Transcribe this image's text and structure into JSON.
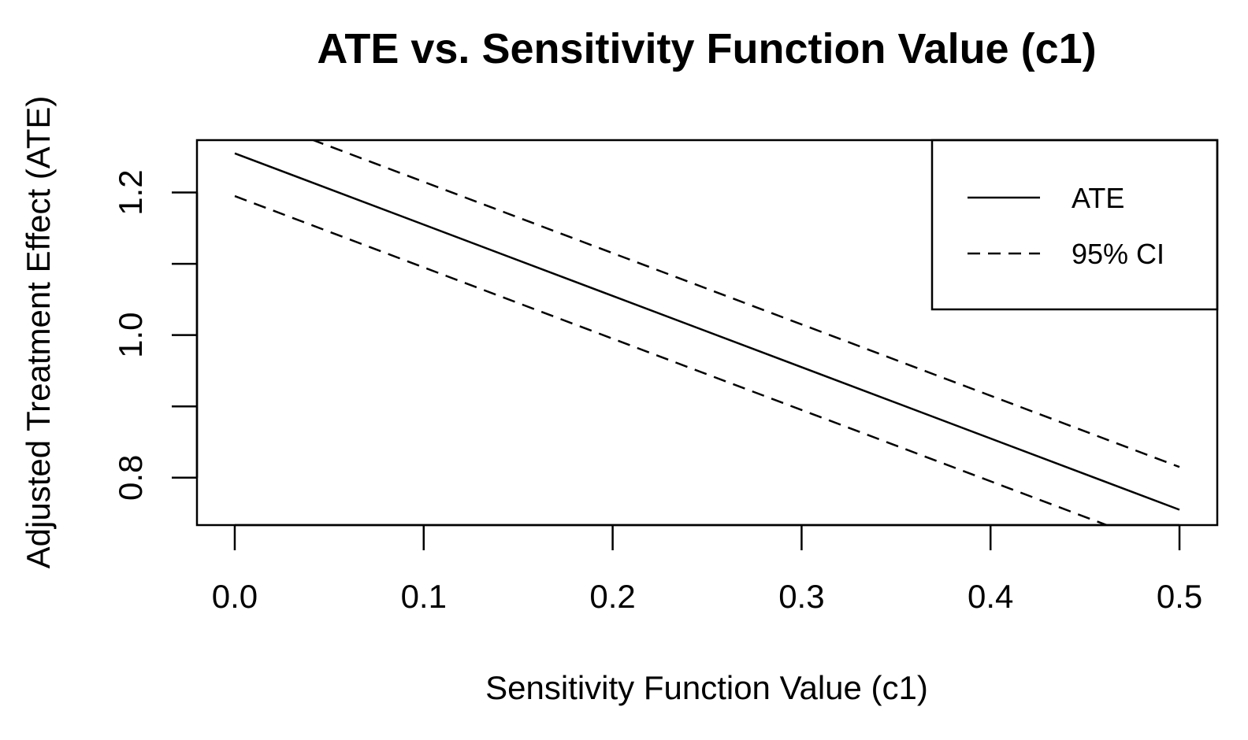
{
  "chart_data": {
    "type": "line",
    "title": "ATE vs. Sensitivity Function Value (c1)",
    "xlabel": "Sensitivity Function Value (c1)",
    "ylabel": "Adjusted Treatment Effect (ATE)",
    "xlim": [
      -0.02,
      0.52
    ],
    "ylim": [
      0.7335,
      1.2735
    ],
    "x_ticks": [
      0.0,
      0.1,
      0.2,
      0.3,
      0.4,
      0.5
    ],
    "x_tick_labels": [
      "0.0",
      "0.1",
      "0.2",
      "0.3",
      "0.4",
      "0.5"
    ],
    "y_ticks": [
      0.8,
      0.9,
      1.0,
      1.1,
      1.2
    ],
    "y_tick_labels": [
      "0.8",
      "",
      "1.0",
      "",
      "1.2"
    ],
    "grid": false,
    "legend_position": "top-right",
    "series": [
      {
        "name": "ATE",
        "line_style": "solid",
        "color": "#000000",
        "x": [
          0.0,
          0.5
        ],
        "y": [
          1.255,
          0.755
        ]
      },
      {
        "name": "95% CI",
        "line_style": "dashed",
        "color": "#000000",
        "x": [
          0.0,
          0.5
        ],
        "y": [
          1.315,
          0.815
        ]
      },
      {
        "line_style": "dashed",
        "color": "#000000",
        "x": [
          0.0,
          0.5
        ],
        "y": [
          1.195,
          0.695
        ]
      }
    ],
    "legend": [
      {
        "label": "ATE",
        "line_style": "solid"
      },
      {
        "label": "95% CI",
        "line_style": "dashed"
      }
    ]
  }
}
